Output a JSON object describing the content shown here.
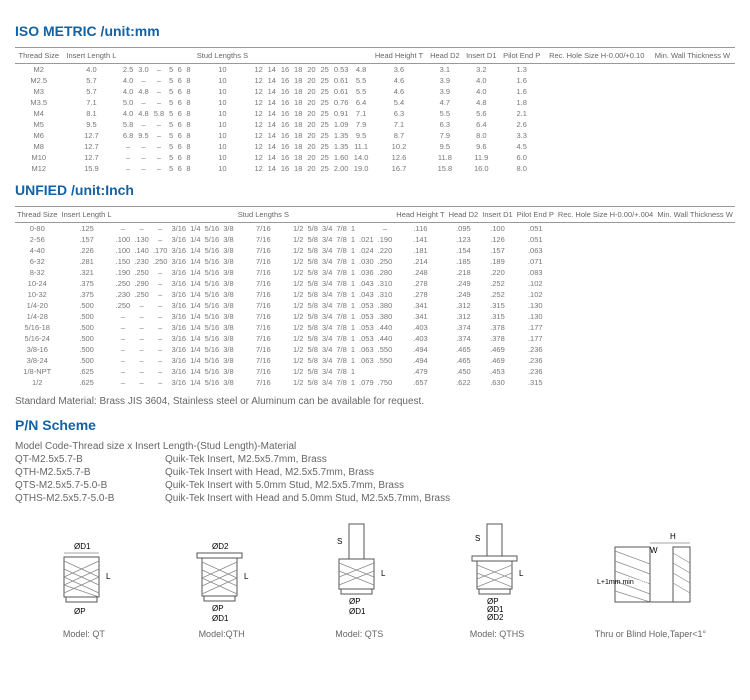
{
  "iso_title": "ISO METRIC /unit:mm",
  "iso_headers": [
    "Thread Size",
    "Insert Length L",
    "",
    "",
    "",
    "",
    "",
    "",
    "Stud Lengths S",
    "",
    "",
    "",
    "",
    "",
    "",
    "",
    "",
    "Head Height T",
    "Head D2",
    "Insert D1",
    "Pilot End P",
    "Rec. Hole Size H-0.00/+0.10",
    "Min. Wall Thickness W"
  ],
  "iso_rows": [
    [
      "M2",
      "4.0",
      "2.5",
      "3.0",
      "–",
      "5",
      "6",
      "8",
      "10",
      "12",
      "14",
      "16",
      "18",
      "20",
      "25",
      "0.53",
      "4.8",
      "3.6",
      "3.1",
      "3.2",
      "1.3"
    ],
    [
      "M2.5",
      "5.7",
      "4.0",
      "–",
      "–",
      "5",
      "6",
      "8",
      "10",
      "12",
      "14",
      "16",
      "18",
      "20",
      "25",
      "0.61",
      "5.5",
      "4.6",
      "3.9",
      "4.0",
      "1.6"
    ],
    [
      "M3",
      "5.7",
      "4.0",
      "4.8",
      "–",
      "5",
      "6",
      "8",
      "10",
      "12",
      "14",
      "16",
      "18",
      "20",
      "25",
      "0.61",
      "5.5",
      "4.6",
      "3.9",
      "4.0",
      "1.6"
    ],
    [
      "M3.5",
      "7.1",
      "5.0",
      "–",
      "–",
      "5",
      "6",
      "8",
      "10",
      "12",
      "14",
      "16",
      "18",
      "20",
      "25",
      "0.76",
      "6.4",
      "5.4",
      "4.7",
      "4.8",
      "1.8"
    ],
    [
      "M4",
      "8.1",
      "4.0",
      "4.8",
      "5.8",
      "5",
      "6",
      "8",
      "10",
      "12",
      "14",
      "16",
      "18",
      "20",
      "25",
      "0.91",
      "7.1",
      "6.3",
      "5.5",
      "5.6",
      "2.1"
    ],
    [
      "M5",
      "9.5",
      "5.8",
      "–",
      "–",
      "5",
      "6",
      "8",
      "10",
      "12",
      "14",
      "16",
      "18",
      "20",
      "25",
      "1.09",
      "7.9",
      "7.1",
      "6.3",
      "6.4",
      "2.6"
    ],
    [
      "M6",
      "12.7",
      "6.8",
      "9.5",
      "–",
      "5",
      "6",
      "8",
      "10",
      "12",
      "14",
      "16",
      "18",
      "20",
      "25",
      "1.35",
      "9.5",
      "8.7",
      "7.9",
      "8.0",
      "3.3"
    ],
    [
      "M8",
      "12.7",
      "–",
      "–",
      "–",
      "5",
      "6",
      "8",
      "10",
      "12",
      "14",
      "16",
      "18",
      "20",
      "25",
      "1.35",
      "11.1",
      "10.2",
      "9.5",
      "9.6",
      "4.5"
    ],
    [
      "M10",
      "12.7",
      "–",
      "–",
      "–",
      "5",
      "6",
      "8",
      "10",
      "12",
      "14",
      "16",
      "18",
      "20",
      "25",
      "1.60",
      "14.0",
      "12.6",
      "11.8",
      "11.9",
      "6.0"
    ],
    [
      "M12",
      "15.9",
      "–",
      "–",
      "–",
      "5",
      "6",
      "8",
      "10",
      "12",
      "14",
      "16",
      "18",
      "20",
      "25",
      "2.00",
      "19.0",
      "16.7",
      "15.8",
      "16.0",
      "8.0"
    ]
  ],
  "unified_title": "UNFIED /unit:Inch",
  "unified_headers": [
    "Thread Size",
    "Insert Length L",
    "",
    "",
    "",
    "",
    "",
    "",
    "",
    "Stud Lengths S",
    "",
    "",
    "",
    "",
    "",
    "",
    "",
    "Head Height T",
    "Head D2",
    "Insert D1",
    "Pilot End P",
    "Rec. Hole Size H-0.00/+.004",
    "Min. Wall Thickness W"
  ],
  "unified_rows": [
    [
      "0-80",
      ".125",
      "–",
      "–",
      "–",
      "3/16",
      "1/4",
      "5/16",
      "3/8",
      "7/16",
      "1/2",
      "5/8",
      "3/4",
      "7/8",
      "1",
      "",
      "–",
      ".116",
      ".095",
      ".100",
      ".051"
    ],
    [
      "2-56",
      ".157",
      ".100",
      ".130",
      "–",
      "3/16",
      "1/4",
      "5/16",
      "3/8",
      "7/16",
      "1/2",
      "5/8",
      "3/4",
      "7/8",
      "1",
      ".021",
      ".190",
      ".141",
      ".123",
      ".126",
      ".051"
    ],
    [
      "4-40",
      ".226",
      ".100",
      ".140",
      ".170",
      "3/16",
      "1/4",
      "5/16",
      "3/8",
      "7/16",
      "1/2",
      "5/8",
      "3/4",
      "7/8",
      "1",
      ".024",
      ".220",
      ".181",
      ".154",
      ".157",
      ".063"
    ],
    [
      "6-32",
      ".281",
      ".150",
      ".230",
      ".250",
      "3/16",
      "1/4",
      "5/16",
      "3/8",
      "7/16",
      "1/2",
      "5/8",
      "3/4",
      "7/8",
      "1",
      ".030",
      ".250",
      ".214",
      ".185",
      ".189",
      ".071"
    ],
    [
      "8-32",
      ".321",
      ".190",
      ".250",
      "–",
      "3/16",
      "1/4",
      "5/16",
      "3/8",
      "7/16",
      "1/2",
      "5/8",
      "3/4",
      "7/8",
      "1",
      ".036",
      ".280",
      ".248",
      ".218",
      ".220",
      ".083"
    ],
    [
      "10-24",
      ".375",
      ".250",
      ".290",
      "–",
      "3/16",
      "1/4",
      "5/16",
      "3/8",
      "7/16",
      "1/2",
      "5/8",
      "3/4",
      "7/8",
      "1",
      ".043",
      ".310",
      ".278",
      ".249",
      ".252",
      ".102"
    ],
    [
      "10-32",
      ".375",
      ".230",
      ".250",
      "–",
      "3/16",
      "1/4",
      "5/16",
      "3/8",
      "7/16",
      "1/2",
      "5/8",
      "3/4",
      "7/8",
      "1",
      ".043",
      ".310",
      ".278",
      ".249",
      ".252",
      ".102"
    ],
    [
      "1/4-20",
      ".500",
      ".250",
      "–",
      "–",
      "3/16",
      "1/4",
      "5/16",
      "3/8",
      "7/16",
      "1/2",
      "5/8",
      "3/4",
      "7/8",
      "1",
      ".053",
      ".380",
      ".341",
      ".312",
      ".315",
      ".130"
    ],
    [
      "1/4-28",
      ".500",
      "–",
      "–",
      "–",
      "3/16",
      "1/4",
      "5/16",
      "3/8",
      "7/16",
      "1/2",
      "5/8",
      "3/4",
      "7/8",
      "1",
      ".053",
      ".380",
      ".341",
      ".312",
      ".315",
      ".130"
    ],
    [
      "5/16-18",
      ".500",
      "–",
      "–",
      "–",
      "3/16",
      "1/4",
      "5/16",
      "3/8",
      "7/16",
      "1/2",
      "5/8",
      "3/4",
      "7/8",
      "1",
      ".053",
      ".440",
      ".403",
      ".374",
      ".378",
      ".177"
    ],
    [
      "5/16-24",
      ".500",
      "–",
      "–",
      "–",
      "3/16",
      "1/4",
      "5/16",
      "3/8",
      "7/16",
      "1/2",
      "5/8",
      "3/4",
      "7/8",
      "1",
      ".053",
      ".440",
      ".403",
      ".374",
      ".378",
      ".177"
    ],
    [
      "3/8-16",
      ".500",
      "–",
      "–",
      "–",
      "3/16",
      "1/4",
      "5/16",
      "3/8",
      "7/16",
      "1/2",
      "5/8",
      "3/4",
      "7/8",
      "1",
      ".063",
      ".550",
      ".494",
      ".465",
      ".469",
      ".236"
    ],
    [
      "3/8-24",
      ".500",
      "–",
      "–",
      "–",
      "3/16",
      "1/4",
      "5/16",
      "3/8",
      "7/16",
      "1/2",
      "5/8",
      "3/4",
      "7/8",
      "1",
      ".063",
      ".550",
      ".494",
      ".465",
      ".469",
      ".236"
    ],
    [
      "1/8-NPT",
      ".625",
      "–",
      "–",
      "–",
      "3/16",
      "1/4",
      "5/16",
      "3/8",
      "7/16",
      "1/2",
      "5/8",
      "3/4",
      "7/8",
      "1",
      "",
      "",
      ".479",
      ".450",
      ".453",
      ".236"
    ],
    [
      "1/2",
      ".625",
      "–",
      "–",
      "–",
      "3/16",
      "1/4",
      "5/16",
      "3/8",
      "7/16",
      "1/2",
      "5/8",
      "3/4",
      "7/8",
      "1",
      ".079",
      ".750",
      ".657",
      ".622",
      ".630",
      ".315"
    ]
  ],
  "material": "Standard Material: Brass JIS 3604, Stainless steel or Aluminum can be available for request.",
  "pn_title": "P/N Scheme",
  "pn_subtitle": "Model Code-Thread size x Insert Length-(Stud Length)-Material",
  "pn_lines": [
    {
      "code": "QT-M2.5x5.7-B",
      "desc": "Quik-Tek Insert, M2.5x5.7mm, Brass"
    },
    {
      "code": "QTH-M2.5x5.7-B",
      "desc": "Quik-Tek Insert with Head, M2.5x5.7mm, Brass"
    },
    {
      "code": "QTS-M2.5x5.7-5.0-B",
      "desc": "Quik-Tek Insert with 5.0mm Stud, M2.5x5.7mm, Brass"
    },
    {
      "code": "QTHS-M2.5x5.7-5.0-B",
      "desc": "Quik-Tek Insert with Head and 5.0mm Stud, M2.5x5.7mm, Brass"
    }
  ],
  "models": [
    "Model: QT",
    "Model:QTH",
    "Model: QTS",
    "Model: QTHS",
    "Thru or Blind Hole,Taper<1°"
  ],
  "dim_labels": {
    "d1": "ØD1",
    "d2": "ØD2",
    "p": "ØP",
    "l": "L",
    "s": "S",
    "h": "H",
    "w": "W",
    "lmin": "L+1mm min"
  }
}
